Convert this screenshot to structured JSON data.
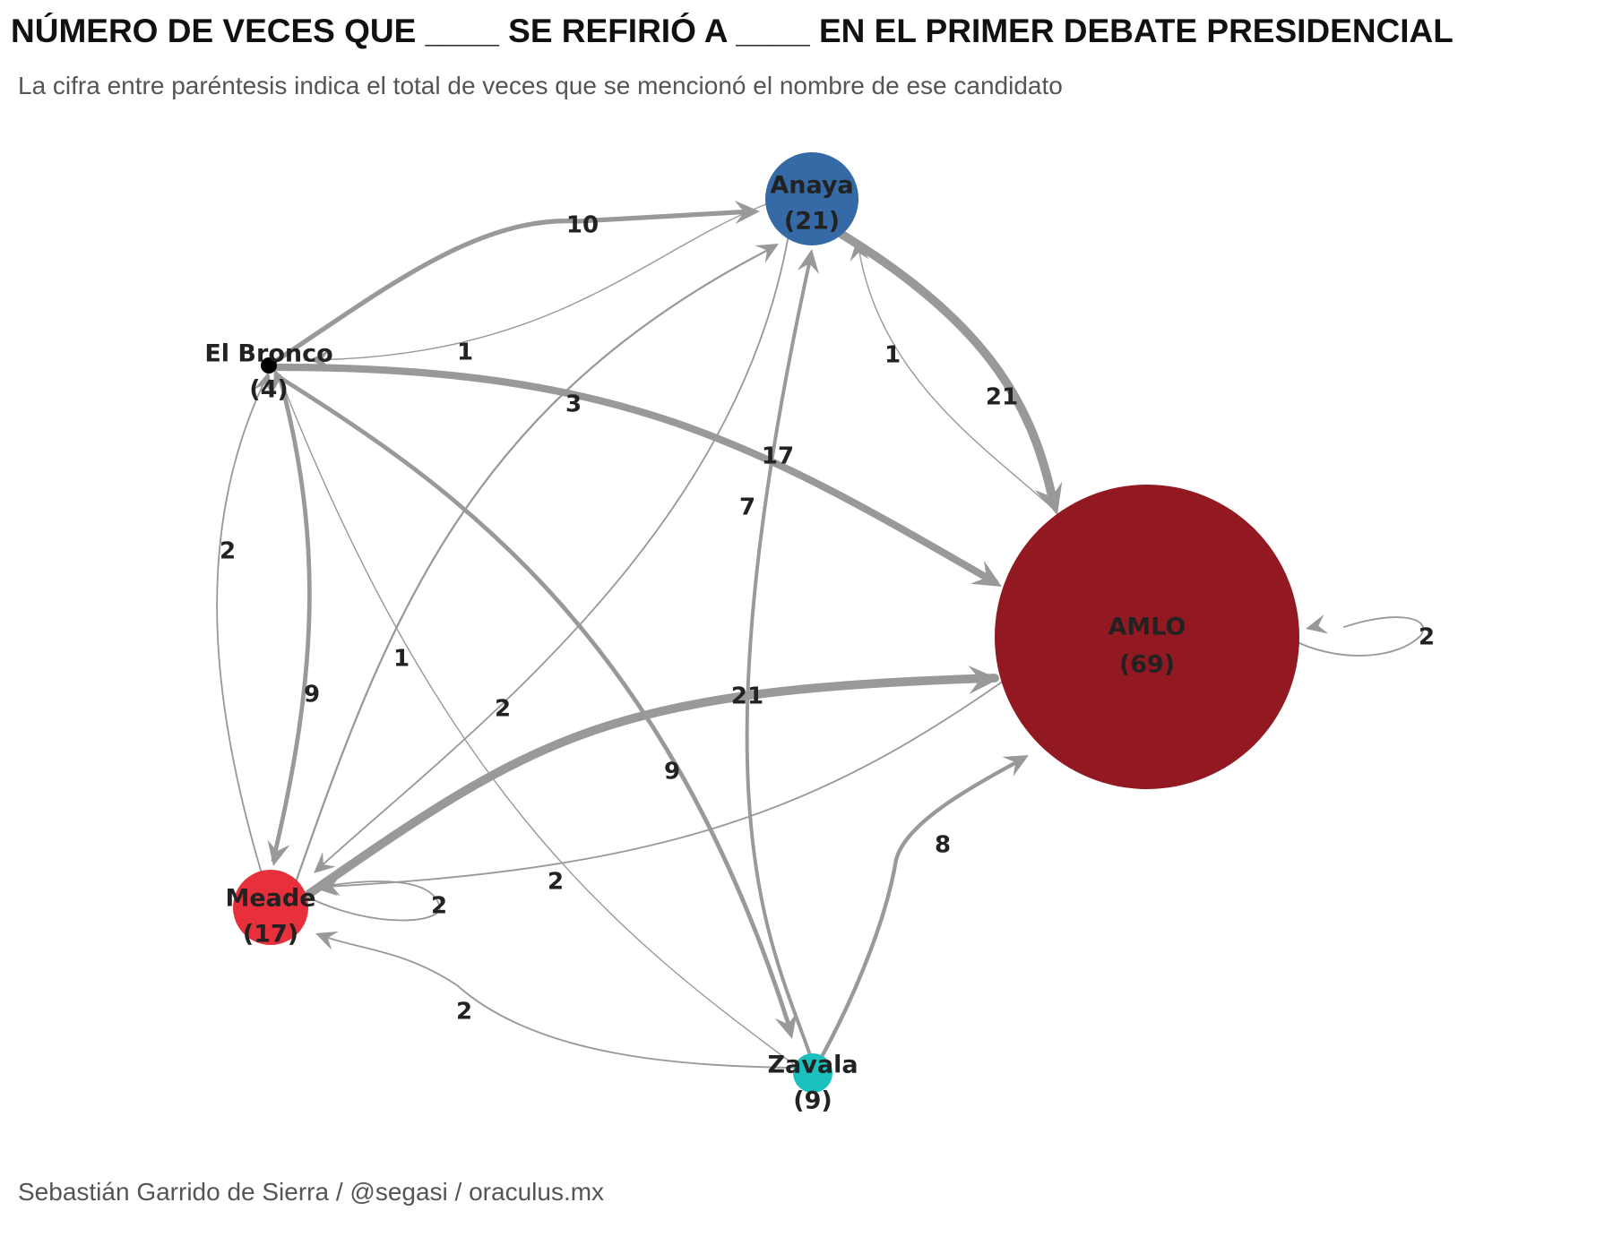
{
  "title": "NÚMERO DE VECES QUE ____ SE REFIRIÓ A ____ EN EL PRIMER DEBATE PRESIDENCIAL",
  "subtitle": "La cifra entre paréntesis indica el total de veces que se mencionó el nombre de ese candidato",
  "caption": "Sebastián Garrido de Sierra / @segasi / oraculus.mx",
  "nodes": [
    {
      "id": "Anaya",
      "label": "Anaya",
      "total": "(21)",
      "color": "#356aa6"
    },
    {
      "id": "ElBronco",
      "label": "El Bronco",
      "total": "(4)",
      "color": "#000000"
    },
    {
      "id": "AMLO",
      "label": "AMLO",
      "total": "(69)",
      "color": "#921921"
    },
    {
      "id": "Meade",
      "label": "Meade",
      "total": "(17)",
      "color": "#e8303c"
    },
    {
      "id": "Zavala",
      "label": "Zavala",
      "total": "(9)",
      "color": "#1bbfbb"
    }
  ],
  "edges": [
    {
      "from": "ElBronco",
      "to": "Anaya",
      "count": "10"
    },
    {
      "from": "Anaya",
      "to": "ElBronco",
      "count": "1"
    },
    {
      "from": "Anaya",
      "to": "AMLO",
      "count": "21"
    },
    {
      "from": "AMLO",
      "to": "Anaya",
      "count": "1"
    },
    {
      "from": "ElBronco",
      "to": "AMLO",
      "count": "17"
    },
    {
      "from": "Meade",
      "to": "Anaya",
      "count": "3"
    },
    {
      "from": "Zavala",
      "to": "Anaya",
      "count": "7"
    },
    {
      "from": "Anaya",
      "to": "Meade",
      "count": "2"
    },
    {
      "from": "Meade",
      "to": "ElBronco",
      "count": "2"
    },
    {
      "from": "ElBronco",
      "to": "Meade",
      "count": "9"
    },
    {
      "from": "Zavala",
      "to": "ElBronco",
      "count": "1"
    },
    {
      "from": "ElBronco",
      "to": "Zavala",
      "count": "9"
    },
    {
      "from": "Meade",
      "to": "AMLO",
      "count": "21"
    },
    {
      "from": "AMLO",
      "to": "Meade",
      "count": "2"
    },
    {
      "from": "Meade",
      "to": "Meade",
      "count": "2"
    },
    {
      "from": "Zavala",
      "to": "Meade",
      "count": "2"
    },
    {
      "from": "Zavala",
      "to": "AMLO",
      "count": "8"
    },
    {
      "from": "AMLO",
      "to": "AMLO",
      "count": "2"
    }
  ]
}
